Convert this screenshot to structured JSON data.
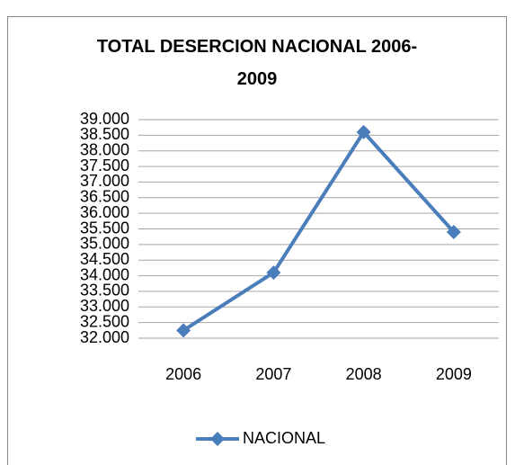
{
  "chart_data": {
    "type": "line",
    "title": "TOTAL DESERCION NACIONAL 2006-2009",
    "categories": [
      "2006",
      "2007",
      "2008",
      "2009"
    ],
    "series": [
      {
        "name": "NACIONAL",
        "color": "#4a7ebb",
        "values": [
          32250,
          34100,
          38600,
          35400
        ]
      }
    ],
    "ylim": [
      32000,
      39000
    ],
    "yticks": [
      {
        "value": 32000,
        "label": "32.000"
      },
      {
        "value": 32500,
        "label": "32.500"
      },
      {
        "value": 33000,
        "label": "33.000"
      },
      {
        "value": 33500,
        "label": "33.500"
      },
      {
        "value": 34000,
        "label": "34.000"
      },
      {
        "value": 34500,
        "label": "34.500"
      },
      {
        "value": 35000,
        "label": "35.000"
      },
      {
        "value": 35500,
        "label": "35.500"
      },
      {
        "value": 36000,
        "label": "36.000"
      },
      {
        "value": 36500,
        "label": "36.500"
      },
      {
        "value": 37000,
        "label": "37.000"
      },
      {
        "value": 37500,
        "label": "37.500"
      },
      {
        "value": 38000,
        "label": "38.000"
      },
      {
        "value": 38500,
        "label": "38.500"
      },
      {
        "value": 39000,
        "label": "39.000"
      }
    ],
    "grid": true,
    "legend": "bottom"
  }
}
